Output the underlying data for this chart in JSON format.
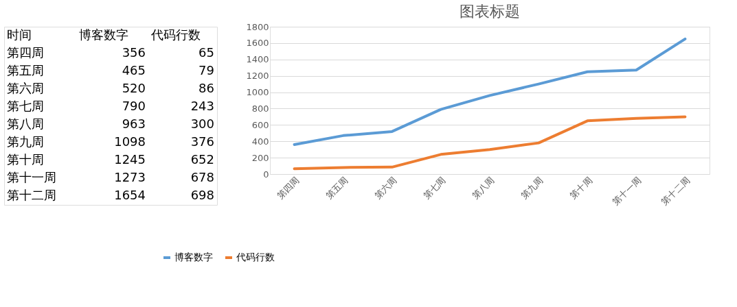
{
  "chart_data": [
    {
      "type": "other",
      "annotations": [
        "时间"
      ],
      "data_labels": true,
      "categories": [
        "第四周",
        "第五周",
        "第六周",
        "第七周",
        "第八周",
        "第九周",
        "第十周",
        "第十一周",
        "第十二周"
      ],
      "series": [
        {
          "name": "博客数字",
          "values": [
            356,
            465,
            520,
            790,
            963,
            1098,
            1245,
            1273,
            1654
          ]
        },
        {
          "name": "代码行数",
          "values": [
            65,
            79,
            86,
            243,
            300,
            376,
            652,
            678,
            698
          ]
        }
      ]
    },
    {
      "type": "line",
      "title": "图表标题",
      "categories": [
        "第四周",
        "第五周",
        "第六周",
        "第七周",
        "第八周",
        "第九周",
        "第十周",
        "第十一周",
        "第十二周"
      ],
      "series": [
        {
          "name": "博客数字",
          "color": "#5b9bd5",
          "values": [
            360,
            470,
            520,
            790,
            960,
            1100,
            1250,
            1270,
            1650
          ]
        },
        {
          "name": "代码行数",
          "color": "#ed7d31",
          "values": [
            65,
            80,
            85,
            240,
            300,
            380,
            650,
            680,
            700
          ]
        }
      ],
      "ylim": [
        0,
        1800
      ],
      "yticks": [
        0,
        200,
        400,
        600,
        800,
        1000,
        1200,
        1400,
        1600,
        1800
      ],
      "grid": "y",
      "legend": "bottom",
      "line_style": "solid"
    }
  ]
}
